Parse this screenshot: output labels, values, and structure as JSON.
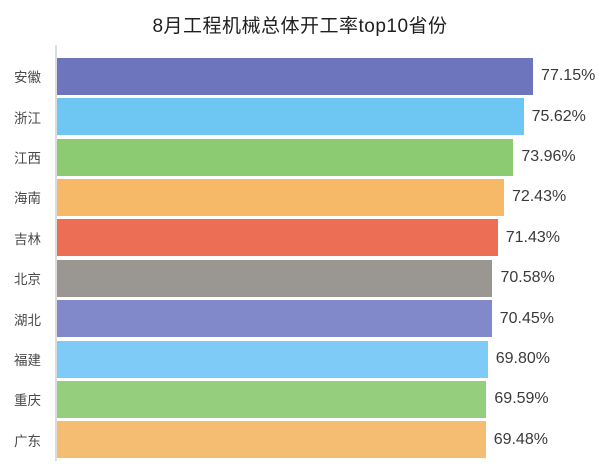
{
  "chart_data": {
    "type": "bar",
    "orientation": "horizontal",
    "title": "8月工程机械总体开工率top10省份",
    "categories": [
      "安徽",
      "浙江",
      "江西",
      "海南",
      "吉林",
      "北京",
      "湖北",
      "福建",
      "重庆",
      "广东"
    ],
    "values": [
      77.15,
      75.62,
      73.96,
      72.43,
      71.43,
      70.58,
      70.45,
      69.8,
      69.59,
      69.48
    ],
    "value_labels": [
      "77.15%",
      "75.62%",
      "73.96%",
      "72.43%",
      "71.43%",
      "70.58%",
      "70.45%",
      "69.80%",
      "69.59%",
      "69.48%"
    ],
    "bar_colors": [
      "#6d76bc",
      "#6ec6f3",
      "#8dcb72",
      "#f5b968",
      "#ec6e55",
      "#9a9793",
      "#8289cb",
      "#7dcbf6",
      "#95ce7c",
      "#f4bd72"
    ],
    "xlabel": "",
    "ylabel": "",
    "xlim": [
      0,
      88
    ],
    "grid": false,
    "legend": false,
    "colors": {
      "background": "#ffffff",
      "axis_line": "#dcdcdc",
      "title_text": "#1f1f1f",
      "category_text": "#4a4a4a",
      "value_text": "#3a3a3a"
    }
  }
}
